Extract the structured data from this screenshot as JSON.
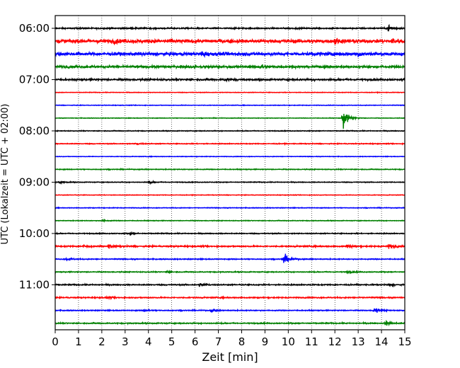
{
  "chart_data": {
    "type": "line",
    "title": "",
    "xlabel": "Zeit  [min]",
    "ylabel": "UTC (Lokalzeit = UTC + 02:00)",
    "xlim": [
      0,
      15
    ],
    "x_ticks": [
      0,
      1,
      2,
      3,
      4,
      5,
      6,
      7,
      8,
      9,
      10,
      11,
      12,
      13,
      14,
      15
    ],
    "y_tick_labels": [
      "06:00",
      "07:00",
      "08:00",
      "09:00",
      "10:00",
      "11:00"
    ],
    "trace_interval_min": 15,
    "grid": "vertical dotted lines at each minute",
    "legend": "none",
    "trace_colors": [
      "#000000",
      "#ff0000",
      "#0000ff",
      "#008000"
    ],
    "series": [
      {
        "start": "06:00",
        "color": "#000000",
        "noise": 0.35,
        "events": [
          {
            "x": 14.3,
            "amp": 2.2
          }
        ]
      },
      {
        "start": "06:15",
        "color": "#ff0000",
        "noise": 1.0,
        "events": [
          {
            "x": 2.5,
            "amp": 1.0
          },
          {
            "x": 12.0,
            "amp": 1.6
          },
          {
            "x": 14.5,
            "amp": 1.4
          }
        ]
      },
      {
        "start": "06:30",
        "color": "#0000ff",
        "noise": 0.9,
        "events": [
          {
            "x": 6.3,
            "amp": 1.6
          },
          {
            "x": 13.0,
            "amp": 1.4
          }
        ]
      },
      {
        "start": "06:45",
        "color": "#008000",
        "noise": 0.6,
        "events": [
          {
            "x": 8.8,
            "amp": 1.5
          }
        ]
      },
      {
        "start": "07:00",
        "color": "#000000",
        "noise": 0.45,
        "events": [
          {
            "x": 7.3,
            "amp": 1.0
          }
        ]
      },
      {
        "start": "07:15",
        "color": "#ff0000",
        "noise": 0.15,
        "events": []
      },
      {
        "start": "07:30",
        "color": "#0000ff",
        "noise": 0.15,
        "events": []
      },
      {
        "start": "07:45",
        "color": "#008000",
        "noise": 0.15,
        "events": [
          {
            "x": 12.35,
            "amp": 6.5
          }
        ]
      },
      {
        "start": "08:00",
        "color": "#000000",
        "noise": 0.2,
        "events": []
      },
      {
        "start": "08:15",
        "color": "#ff0000",
        "noise": 0.22,
        "events": [
          {
            "x": 3.5,
            "amp": 0.5
          }
        ]
      },
      {
        "start": "08:30",
        "color": "#0000ff",
        "noise": 0.15,
        "events": []
      },
      {
        "start": "08:45",
        "color": "#008000",
        "noise": 0.22,
        "events": []
      },
      {
        "start": "09:00",
        "color": "#000000",
        "noise": 0.2,
        "events": [
          {
            "x": 0.2,
            "amp": 0.6
          },
          {
            "x": 4.0,
            "amp": 0.7
          }
        ]
      },
      {
        "start": "09:15",
        "color": "#ff0000",
        "noise": 0.15,
        "events": []
      },
      {
        "start": "09:30",
        "color": "#0000ff",
        "noise": 0.18,
        "events": []
      },
      {
        "start": "09:45",
        "color": "#008000",
        "noise": 0.18,
        "events": [
          {
            "x": 2.0,
            "amp": 0.6
          }
        ]
      },
      {
        "start": "10:00",
        "color": "#000000",
        "noise": 0.25,
        "events": [
          {
            "x": 3.2,
            "amp": 0.5
          }
        ]
      },
      {
        "start": "10:15",
        "color": "#ff0000",
        "noise": 0.35,
        "events": [
          {
            "x": 1.2,
            "amp": 1.0
          },
          {
            "x": 2.3,
            "amp": 1.2
          },
          {
            "x": 12.5,
            "amp": 1.3
          },
          {
            "x": 14.3,
            "amp": 1.5
          }
        ]
      },
      {
        "start": "10:30",
        "color": "#0000ff",
        "noise": 0.25,
        "events": [
          {
            "x": 0.5,
            "amp": 0.8
          },
          {
            "x": 9.8,
            "amp": 3.5
          }
        ]
      },
      {
        "start": "10:45",
        "color": "#008000",
        "noise": 0.25,
        "events": [
          {
            "x": 4.8,
            "amp": 0.5
          },
          {
            "x": 12.5,
            "amp": 0.7
          }
        ]
      },
      {
        "start": "11:00",
        "color": "#000000",
        "noise": 0.3,
        "events": [
          {
            "x": 6.2,
            "amp": 1.1
          },
          {
            "x": 14.3,
            "amp": 0.8
          }
        ]
      },
      {
        "start": "11:15",
        "color": "#ff0000",
        "noise": 0.3,
        "events": [
          {
            "x": 2.2,
            "amp": 0.5
          }
        ]
      },
      {
        "start": "11:30",
        "color": "#0000ff",
        "noise": 0.25,
        "events": [
          {
            "x": 3.8,
            "amp": 0.7
          },
          {
            "x": 6.7,
            "amp": 0.8
          },
          {
            "x": 13.7,
            "amp": 1.9
          }
        ]
      },
      {
        "start": "11:45",
        "color": "#008000",
        "noise": 0.3,
        "events": [
          {
            "x": 14.2,
            "amp": 1.3
          }
        ]
      }
    ]
  }
}
